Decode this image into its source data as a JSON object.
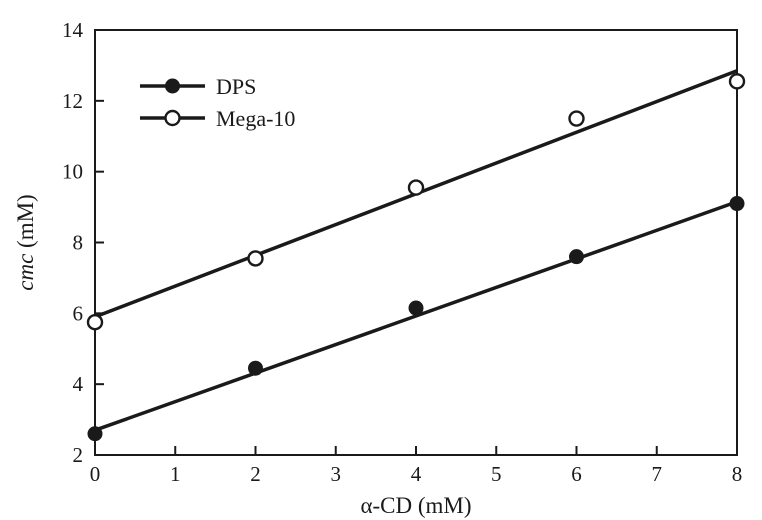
{
  "chart_data": {
    "type": "scatter",
    "title": "",
    "xlabel": "α-CD (mM)",
    "ylabel_italic": "cmc",
    "ylabel_rest": " (mM)",
    "xlim": [
      0,
      8
    ],
    "ylim": [
      2,
      14
    ],
    "xticks": [
      0,
      1,
      2,
      3,
      4,
      5,
      6,
      7,
      8
    ],
    "yticks": [
      2,
      4,
      6,
      8,
      10,
      12,
      14
    ],
    "grid": false,
    "legend_position": "top-left",
    "x": [
      0,
      2,
      4,
      6,
      8
    ],
    "series": [
      {
        "name": "DPS",
        "marker": "filled-circle",
        "color": "#1a1a1a",
        "values": [
          2.6,
          4.45,
          6.15,
          7.6,
          9.1
        ],
        "fit_line": {
          "x0": 0,
          "y0": 2.7,
          "x1": 8,
          "y1": 9.15
        }
      },
      {
        "name": "Mega-10",
        "marker": "open-circle",
        "color": "#1a1a1a",
        "values": [
          5.75,
          7.55,
          9.55,
          11.5,
          12.55
        ],
        "fit_line": {
          "x0": 0,
          "y0": 5.9,
          "x1": 8,
          "y1": 12.85
        }
      }
    ]
  },
  "colors": {
    "ink": "#1a1a1a",
    "background": "#ffffff"
  }
}
